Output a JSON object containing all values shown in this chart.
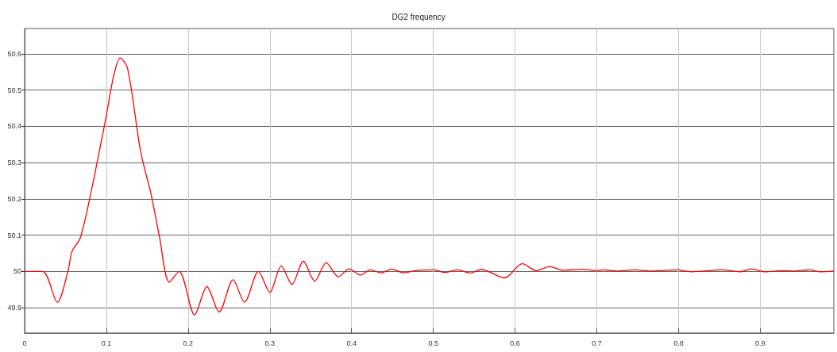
{
  "chart_data": {
    "type": "line",
    "title": "DG2 frequency",
    "xlim": [
      0,
      0.99
    ],
    "ylim": [
      49.83,
      50.67
    ],
    "xticks": [
      0,
      0.1,
      0.2,
      0.3,
      0.4,
      0.5,
      0.6,
      0.7,
      0.8,
      0.9
    ],
    "yticks": [
      49.9,
      50,
      50.1,
      50.2,
      50.3,
      50.4,
      50.5,
      50.6
    ],
    "grid": true,
    "marker": "none",
    "line_style": "solid",
    "series": [
      {
        "color": "#ff0000",
        "x": [
          0,
          0.022,
          0.04,
          0.053,
          0.058,
          0.068,
          0.08,
          0.1,
          0.109,
          0.117,
          0.126,
          0.142,
          0.155,
          0.165,
          0.177,
          0.189,
          0.208,
          0.223,
          0.238,
          0.255,
          0.269,
          0.286,
          0.3,
          0.314,
          0.327,
          0.341,
          0.355,
          0.369,
          0.384,
          0.397,
          0.411,
          0.423,
          0.436,
          0.449,
          0.464,
          0.478,
          0.501,
          0.514,
          0.529,
          0.545,
          0.559,
          0.587,
          0.609,
          0.626,
          0.642,
          0.659,
          0.682,
          0.7,
          0.709,
          0.724,
          0.747,
          0.766,
          0.799,
          0.815,
          0.854,
          0.876,
          0.889,
          0.905,
          0.928,
          0.941,
          0.96,
          0.973,
          0.99
        ],
        "values": [
          50,
          50,
          49.915,
          50,
          50.055,
          50.092,
          50.205,
          50.43,
          50.54,
          50.589,
          50.56,
          50.33,
          50.21,
          50.095,
          49.97,
          50,
          49.88,
          49.958,
          49.888,
          49.977,
          49.915,
          50,
          49.942,
          50.015,
          49.964,
          50.028,
          49.973,
          50.024,
          49.985,
          50.007,
          49.99,
          50.004,
          49.996,
          50.006,
          49.996,
          50.002,
          50.004,
          49.997,
          50.004,
          49.996,
          50.005,
          49.982,
          50.021,
          50.002,
          50.013,
          50.003,
          50.006,
          50.002,
          50.004,
          50.001,
          50.004,
          50.001,
          50.004,
          49.999,
          50.004,
          49.999,
          50.007,
          49.999,
          50.002,
          50.001,
          50.004,
          49.999,
          50.001
        ]
      }
    ]
  }
}
